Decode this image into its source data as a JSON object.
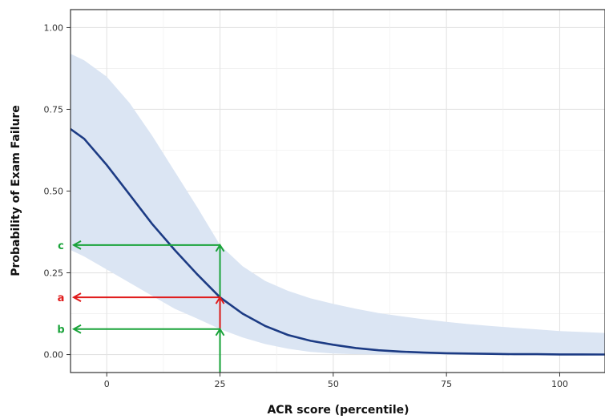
{
  "chart_data": {
    "type": "line",
    "title": "",
    "xlabel": "ACR score (percentile)",
    "ylabel": "Probability of Exam Failure",
    "xlim": [
      -8,
      110
    ],
    "ylim": [
      -0.055,
      1.055
    ],
    "xticks": [
      0,
      25,
      50,
      75,
      100
    ],
    "xtick_labels": [
      "0",
      "25",
      "50",
      "75",
      "100"
    ],
    "yticks": [
      0.0,
      0.25,
      0.5,
      0.75,
      1.0
    ],
    "ytick_labels": [
      "0.00",
      "0.25",
      "0.50",
      "0.75",
      "1.00"
    ],
    "grid": true,
    "series": [
      {
        "kind": "line",
        "x": [
          -8,
          -5,
          0,
          5,
          10,
          15,
          20,
          25,
          30,
          35,
          40,
          45,
          50,
          55,
          60,
          65,
          70,
          75,
          80,
          85,
          90,
          95,
          100,
          105,
          110
        ],
        "y": [
          0.69,
          0.66,
          0.58,
          0.49,
          0.4,
          0.32,
          0.245,
          0.175,
          0.125,
          0.087,
          0.06,
          0.042,
          0.03,
          0.02,
          0.013,
          0.009,
          0.006,
          0.004,
          0.003,
          0.002,
          0.001,
          0.001,
          0.0005,
          0.0003,
          0.0002
        ],
        "color": "#1c3b84"
      },
      {
        "kind": "confidence-band",
        "x": [
          -8,
          -5,
          0,
          5,
          10,
          15,
          20,
          25,
          30,
          35,
          40,
          45,
          50,
          55,
          60,
          65,
          70,
          75,
          80,
          85,
          90,
          95,
          100,
          105,
          110
        ],
        "upper": [
          0.92,
          0.9,
          0.85,
          0.77,
          0.67,
          0.56,
          0.45,
          0.335,
          0.27,
          0.225,
          0.195,
          0.172,
          0.155,
          0.14,
          0.127,
          0.117,
          0.108,
          0.1,
          0.093,
          0.087,
          0.082,
          0.077,
          0.072,
          0.069,
          0.066
        ],
        "lower": [
          0.32,
          0.3,
          0.26,
          0.22,
          0.18,
          0.14,
          0.11,
          0.078,
          0.052,
          0.032,
          0.018,
          0.008,
          0.003,
          0.001,
          0.0,
          0.0,
          0.0,
          0.0,
          0.0,
          0.0,
          0.0,
          0.0,
          0.0,
          0.0,
          0.0
        ],
        "color": "#dbe5f3"
      }
    ],
    "annotations": [
      {
        "label": "c",
        "x": 25,
        "y": 0.335,
        "color": "#1aa33a"
      },
      {
        "label": "a",
        "x": 25,
        "y": 0.175,
        "color": "#e01b1b"
      },
      {
        "label": "b",
        "x": 25,
        "y": 0.078,
        "color": "#1aa33a"
      }
    ]
  }
}
